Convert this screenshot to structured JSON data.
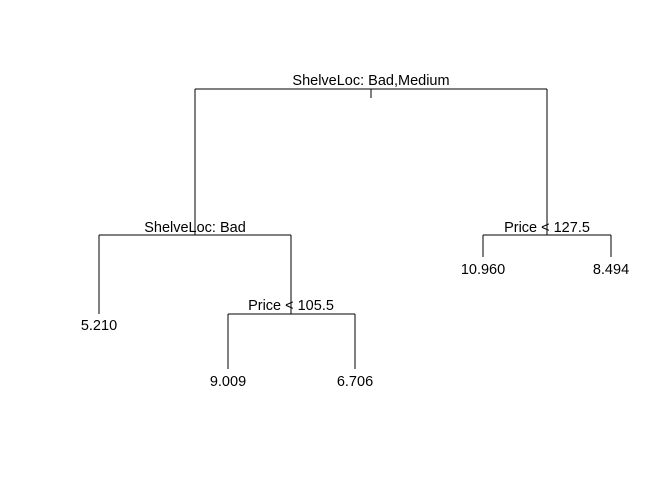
{
  "tree": {
    "split_root": "ShelveLoc: Bad,Medium",
    "split_left": "ShelveLoc: Bad",
    "split_left_right": "Price < 105.5",
    "split_right": "Price < 127.5",
    "leaf_1": "5.210",
    "leaf_2": "9.009",
    "leaf_3": "6.706",
    "leaf_4": "10.960",
    "leaf_5": "8.494"
  }
}
